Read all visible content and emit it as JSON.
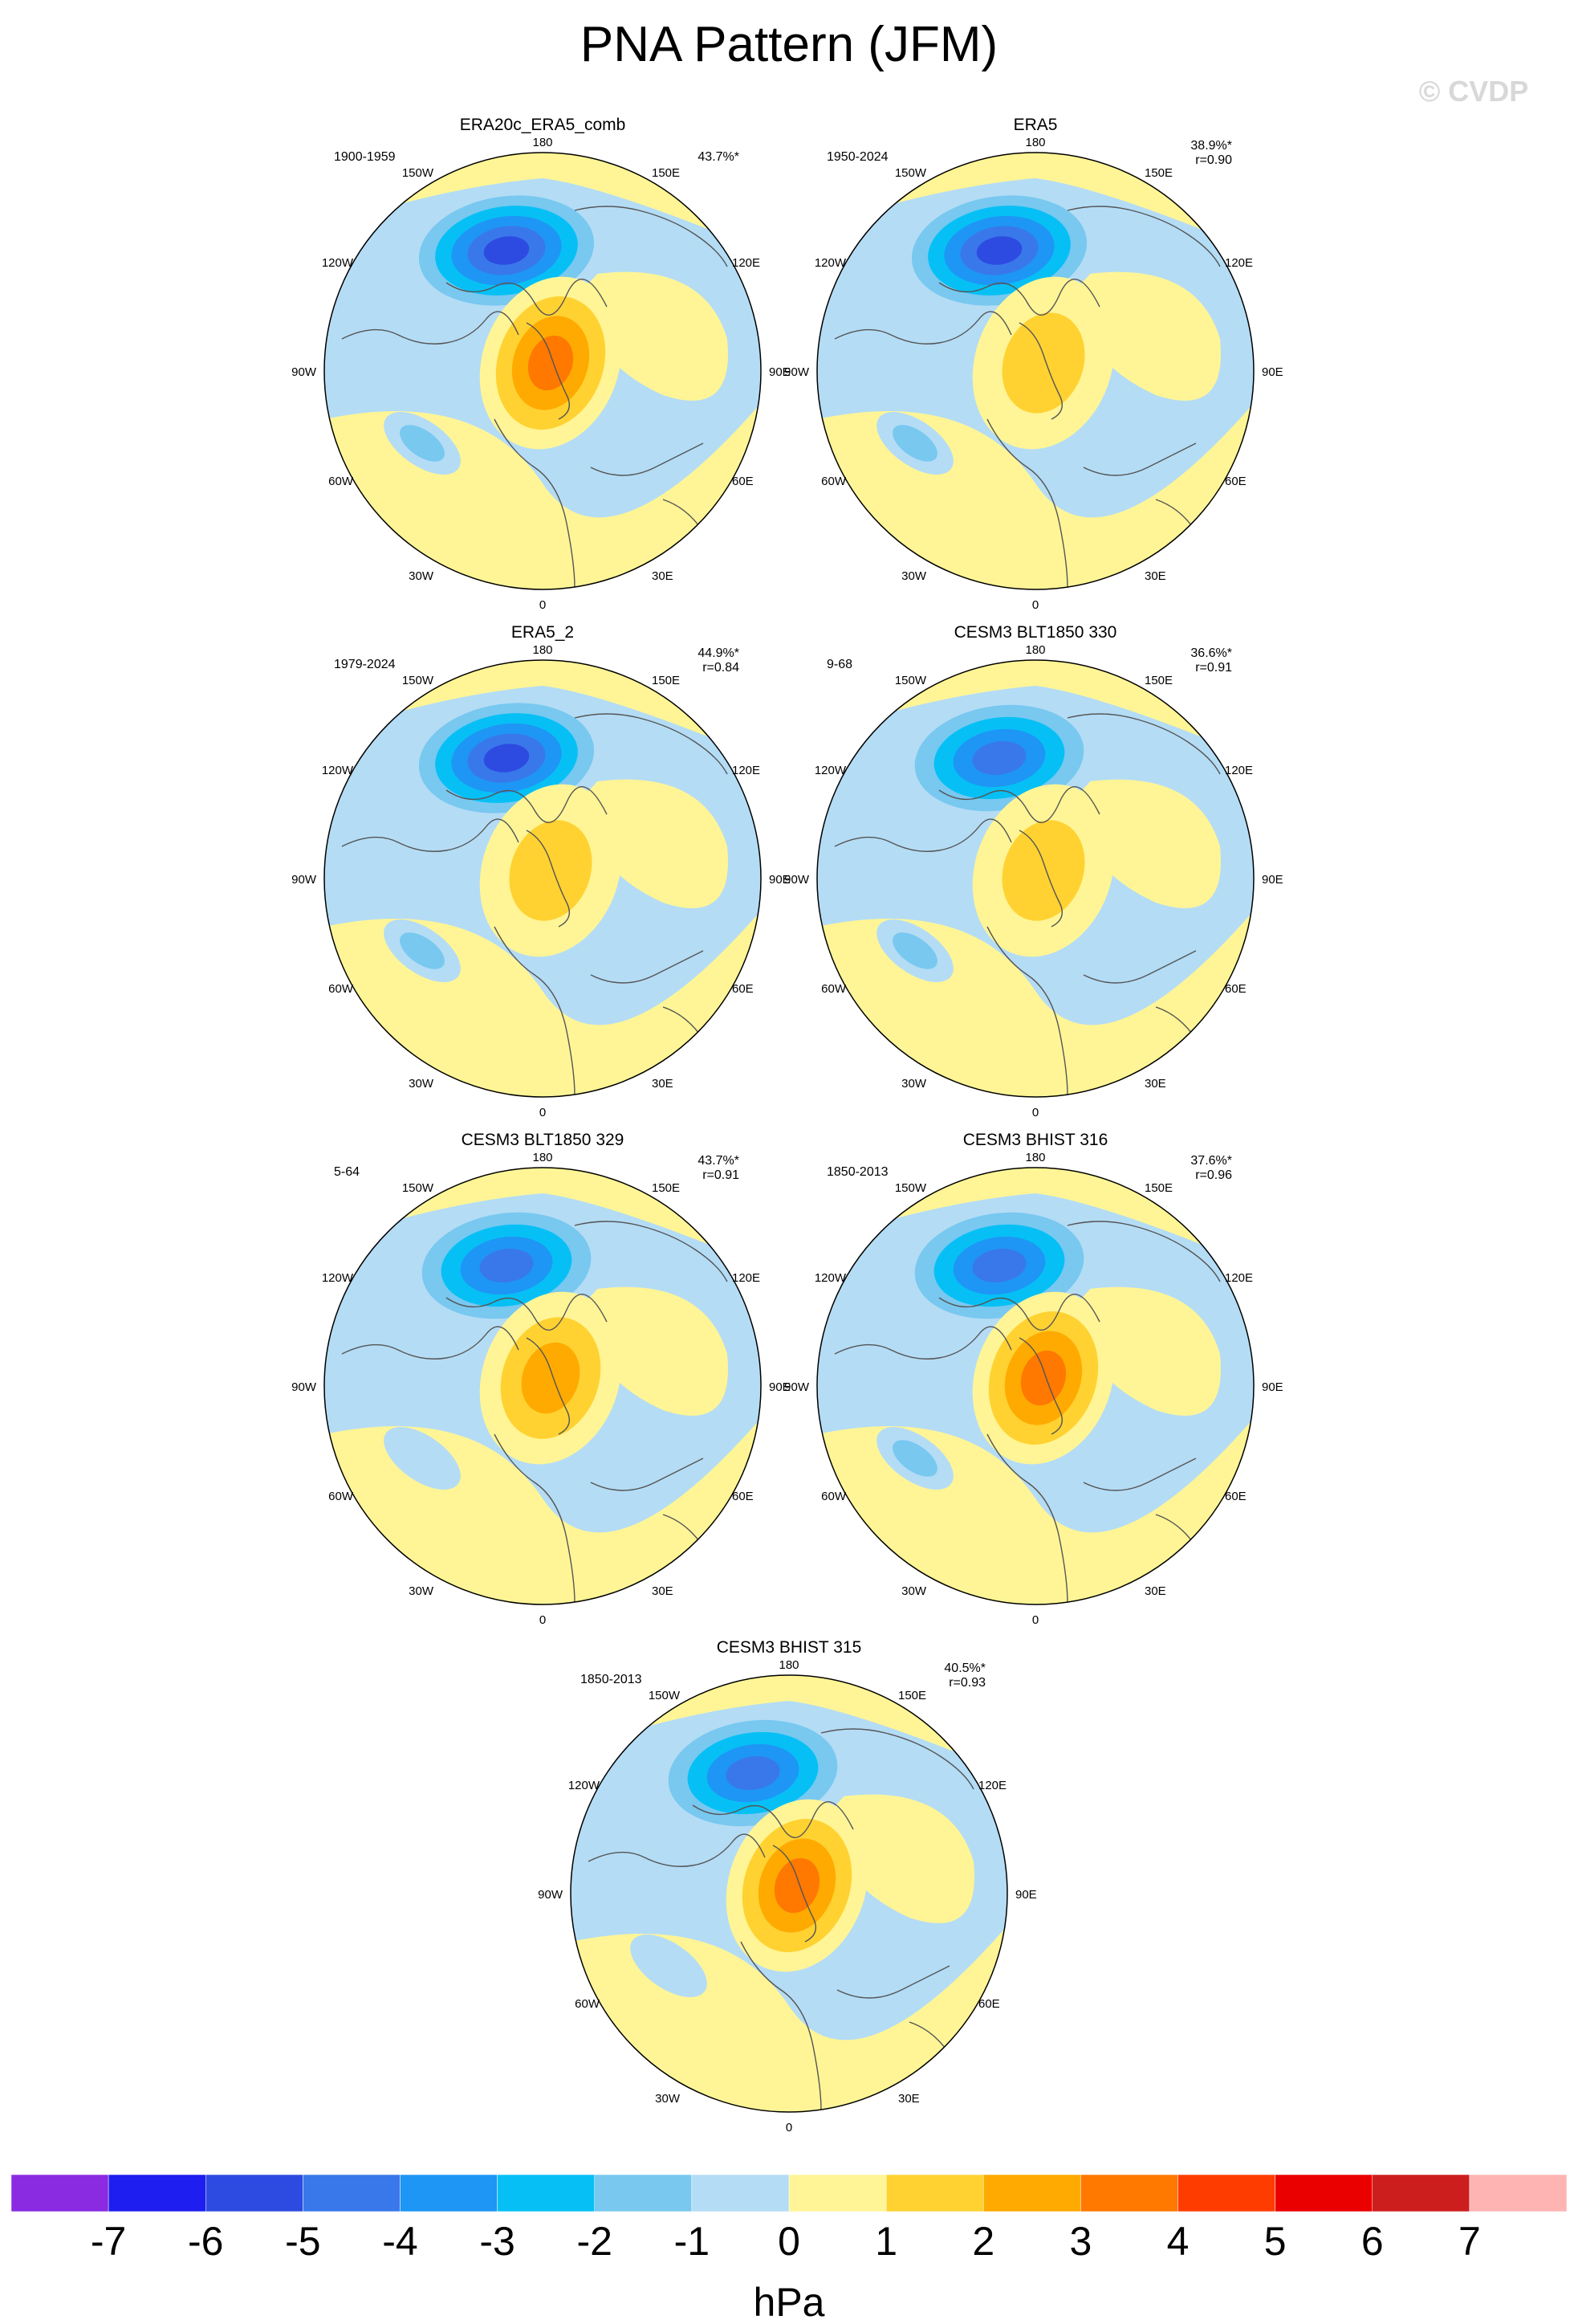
{
  "title": "PNA Pattern (JFM)",
  "watermark": "© CVDP",
  "colors": {
    "levels": [
      "#8a2be2",
      "#1e1ef0",
      "#2d4be0",
      "#3978eb",
      "#1e96f5",
      "#06c0f5",
      "#78c8f0",
      "#b4dcf5",
      "#fff596",
      "#ffd232",
      "#ffaa00",
      "#ff7800",
      "#ff3c00",
      "#eb0000",
      "#cd1e1e",
      "#ffb4b4"
    ],
    "coast": "#555555",
    "bg_positive": "#fff596",
    "bg_negative": "#b4dcf5"
  },
  "map_labels": {
    "top": "180",
    "bottom": "0",
    "left_upper": "150W",
    "right_upper": "150E",
    "left_mid_upper": "120W",
    "right_mid_upper": "120E",
    "left_mid": "90W",
    "right_mid": "90E",
    "left_mid_lower": "60W",
    "right_mid_lower": "60E",
    "left_lower": "30W",
    "right_lower": "30E"
  },
  "chart_data": [
    {
      "type": "heatmap",
      "title": "ERA20c_ERA5_comb",
      "years": "1900-1959",
      "pct": "43.7%*",
      "r": "",
      "pole_anomaly": 4,
      "pacific_anomaly": -6,
      "atlantic_anomaly": -2
    },
    {
      "type": "heatmap",
      "title": "ERA5",
      "years": "1950-2024",
      "pct": "38.9%*",
      "r": "r=0.90",
      "pole_anomaly": 2,
      "pacific_anomaly": -6,
      "atlantic_anomaly": -2
    },
    {
      "type": "heatmap",
      "title": "ERA5_2",
      "years": "1979-2024",
      "pct": "44.9%*",
      "r": "r=0.84",
      "pole_anomaly": 2,
      "pacific_anomaly": -6,
      "atlantic_anomaly": -2
    },
    {
      "type": "heatmap",
      "title": "CESM3 BLT1850 330",
      "years": "9-68",
      "pct": "36.6%*",
      "r": "r=0.91",
      "pole_anomaly": 2,
      "pacific_anomaly": -5,
      "atlantic_anomaly": -2
    },
    {
      "type": "heatmap",
      "title": "CESM3 BLT1850 329",
      "years": "5-64",
      "pct": "43.7%*",
      "r": "r=0.91",
      "pole_anomaly": 3,
      "pacific_anomaly": -5,
      "atlantic_anomaly": -1
    },
    {
      "type": "heatmap",
      "title": "CESM3 BHIST 316",
      "years": "1850-2013",
      "pct": "37.6%*",
      "r": "r=0.96",
      "pole_anomaly": 4,
      "pacific_anomaly": -5,
      "atlantic_anomaly": -2
    },
    {
      "type": "heatmap",
      "title": "CESM3 BHIST 315",
      "years": "1850-2013",
      "pct": "40.5%*",
      "r": "r=0.93",
      "pole_anomaly": 4,
      "pacific_anomaly": -5,
      "atlantic_anomaly": -1
    }
  ],
  "colorbar": {
    "tick_labels": [
      "-7",
      "-6",
      "-5",
      "-4",
      "-3",
      "-2",
      "-1",
      "0",
      "1",
      "2",
      "3",
      "4",
      "5",
      "6",
      "7"
    ],
    "unit": "hPa"
  }
}
